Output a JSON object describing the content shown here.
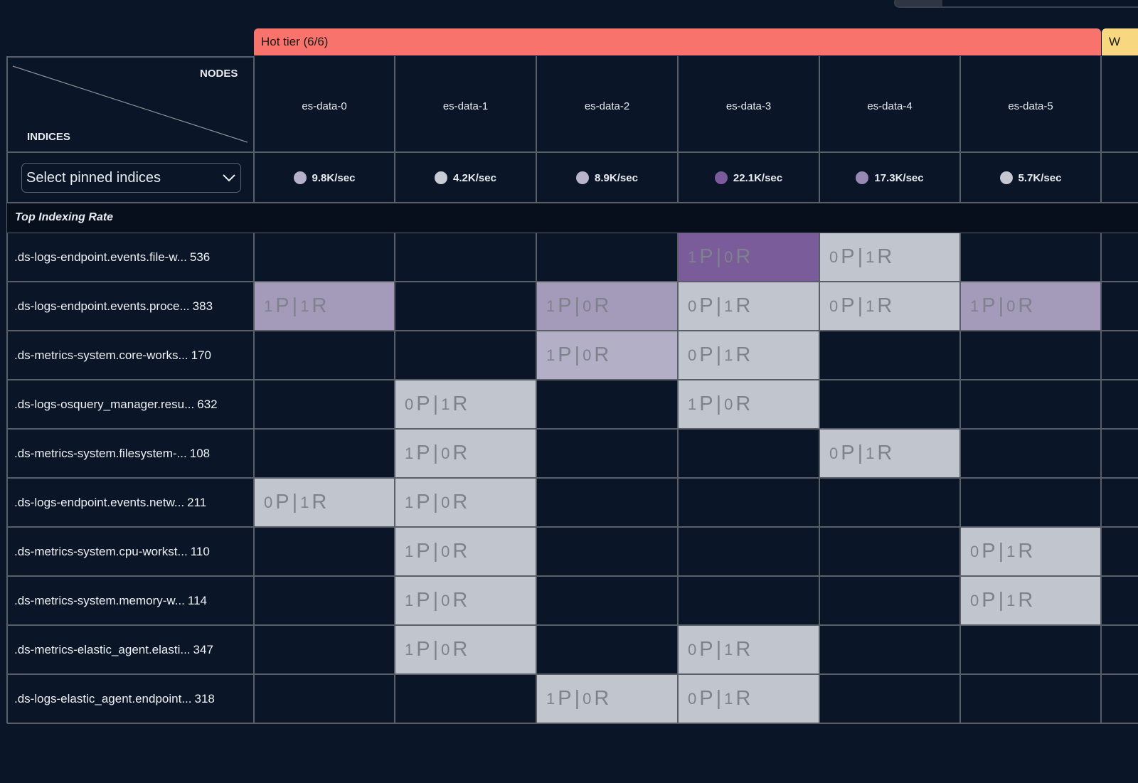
{
  "tier": {
    "label": "Hot tier (6/6)",
    "next_label": "W"
  },
  "corner": {
    "nodes_label": "NODES",
    "indices_label": "INDICES"
  },
  "select": {
    "placeholder": "Select pinned indices"
  },
  "section_label": "Top Indexing Rate",
  "nodes": [
    {
      "name": "es-data-0",
      "rate": "9.8K/sec",
      "color": "#b7b0cc"
    },
    {
      "name": "es-data-1",
      "rate": "4.2K/sec",
      "color": "#c9ccd6"
    },
    {
      "name": "es-data-2",
      "rate": "8.9K/sec",
      "color": "#b9b3cc"
    },
    {
      "name": "es-data-3",
      "rate": "22.1K/sec",
      "color": "#7a5c9b"
    },
    {
      "name": "es-data-4",
      "rate": "17.3K/sec",
      "color": "#9889b4"
    },
    {
      "name": "es-data-5",
      "rate": "5.7K/sec",
      "color": "#c5c8d2"
    }
  ],
  "cell_colors": {
    "gray": "#c0c5ce",
    "light": "#a49bba",
    "pale": "#b3afc6",
    "dark": "#7a5c9b"
  },
  "indices": [
    {
      "name": ".ds-logs-endpoint.events.file-w...",
      "count": "536",
      "shards": [
        [
          3,
          "1",
          "0",
          "dark"
        ],
        [
          4,
          "0",
          "1",
          "gray"
        ]
      ]
    },
    {
      "name": ".ds-logs-endpoint.events.proce...",
      "count": "383",
      "shards": [
        [
          0,
          "1",
          "1",
          "light"
        ],
        [
          2,
          "1",
          "0",
          "light"
        ],
        [
          3,
          "0",
          "1",
          "gray"
        ],
        [
          4,
          "0",
          "1",
          "gray"
        ],
        [
          5,
          "1",
          "0",
          "light"
        ]
      ]
    },
    {
      "name": ".ds-metrics-system.core-works...",
      "count": "170",
      "shards": [
        [
          2,
          "1",
          "0",
          "pale"
        ],
        [
          3,
          "0",
          "1",
          "gray"
        ]
      ]
    },
    {
      "name": ".ds-logs-osquery_manager.resu...",
      "count": "632",
      "shards": [
        [
          1,
          "0",
          "1",
          "gray"
        ],
        [
          3,
          "1",
          "0",
          "gray"
        ]
      ]
    },
    {
      "name": ".ds-metrics-system.filesystem-...",
      "count": "108",
      "shards": [
        [
          1,
          "1",
          "0",
          "gray"
        ],
        [
          4,
          "0",
          "1",
          "gray"
        ]
      ]
    },
    {
      "name": ".ds-logs-endpoint.events.netw...",
      "count": "211",
      "shards": [
        [
          0,
          "0",
          "1",
          "gray"
        ],
        [
          1,
          "1",
          "0",
          "gray"
        ]
      ]
    },
    {
      "name": ".ds-metrics-system.cpu-workst...",
      "count": "110",
      "shards": [
        [
          1,
          "1",
          "0",
          "gray"
        ],
        [
          5,
          "0",
          "1",
          "gray"
        ]
      ]
    },
    {
      "name": ".ds-metrics-system.memory-w...",
      "count": "114",
      "shards": [
        [
          1,
          "1",
          "0",
          "gray"
        ],
        [
          5,
          "0",
          "1",
          "gray"
        ]
      ]
    },
    {
      "name": ".ds-metrics-elastic_agent.elasti...",
      "count": "347",
      "shards": [
        [
          1,
          "1",
          "0",
          "gray"
        ],
        [
          3,
          "0",
          "1",
          "gray"
        ]
      ]
    },
    {
      "name": ".ds-logs-elastic_agent.endpoint...",
      "count": "318",
      "shards": [
        [
          2,
          "1",
          "0",
          "gray"
        ],
        [
          3,
          "0",
          "1",
          "gray"
        ]
      ]
    }
  ]
}
